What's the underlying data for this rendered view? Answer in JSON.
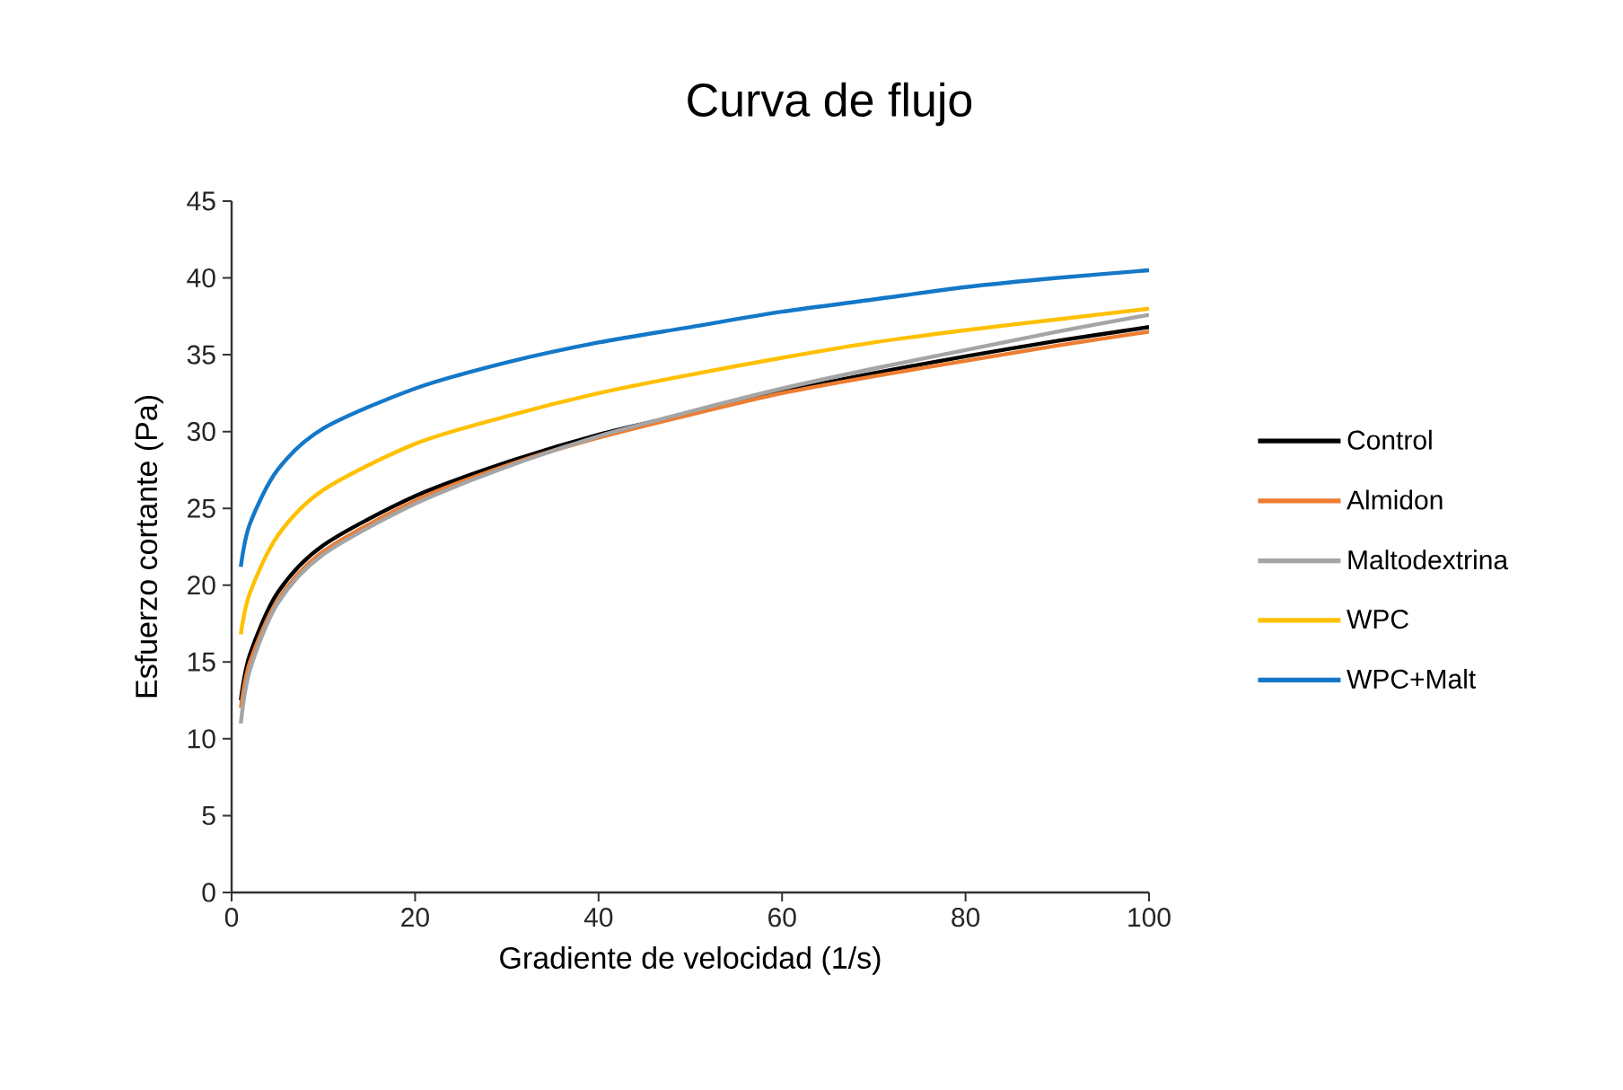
{
  "chart_data": {
    "type": "line",
    "title": "Curva de flujo",
    "xlabel": "Gradiente de velocidad (1/s)",
    "ylabel": "Esfuerzo cortante (Pa)",
    "x": [
      1,
      2,
      5,
      10,
      20,
      30,
      40,
      50,
      60,
      70,
      80,
      90,
      100
    ],
    "series": [
      {
        "name": "Control",
        "color": "#000000",
        "values": [
          12.5,
          15.5,
          19.5,
          22.6,
          25.8,
          28,
          29.8,
          31.2,
          32.6,
          33.8,
          34.9,
          35.9,
          36.8
        ]
      },
      {
        "name": "Almidon",
        "color": "#ed7d31",
        "values": [
          12,
          15,
          19,
          22.2,
          25.5,
          27.8,
          29.6,
          31.1,
          32.5,
          33.6,
          34.6,
          35.6,
          36.5
        ]
      },
      {
        "name": "Maltodextrina",
        "color": "#a5a5a5",
        "values": [
          11,
          14.5,
          18.8,
          22,
          25.3,
          27.7,
          29.7,
          31.3,
          32.8,
          34.1,
          35.3,
          36.5,
          37.6
        ]
      },
      {
        "name": "WPC",
        "color": "#ffc000",
        "values": [
          16.8,
          19.5,
          23.2,
          26.2,
          29.2,
          31,
          32.5,
          33.7,
          34.8,
          35.8,
          36.6,
          37.3,
          38
        ]
      },
      {
        "name": "WPC+Malt",
        "color": "#1478c8",
        "values": [
          21.2,
          24,
          27.5,
          30.2,
          32.8,
          34.5,
          35.8,
          36.8,
          37.8,
          38.6,
          39.4,
          40,
          40.5
        ]
      }
    ],
    "xlim": [
      0,
      100
    ],
    "xticks": [
      0,
      20,
      40,
      60,
      80,
      100
    ],
    "ylim": [
      0,
      45
    ],
    "yticks": [
      0,
      5,
      10,
      15,
      20,
      25,
      30,
      35,
      40,
      45
    ],
    "grid": false,
    "legend": "right",
    "marker": "none",
    "line_style": "solid"
  }
}
